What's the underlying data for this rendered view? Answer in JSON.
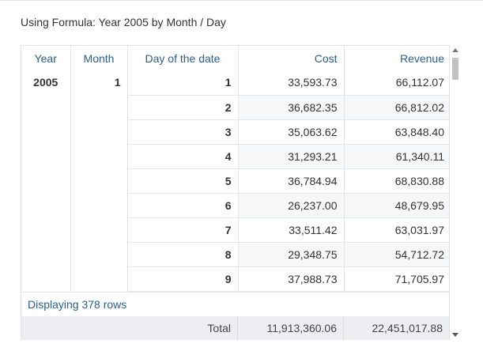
{
  "title": "Using Formula: Year 2005 by Month / Day",
  "columns": [
    "Year",
    "Month",
    "Day of the date",
    "Cost",
    "Revenue"
  ],
  "group": {
    "year": "2005",
    "month": "1"
  },
  "rows": [
    {
      "day": "1",
      "cost": "33,593.73",
      "revenue": "66,112.07"
    },
    {
      "day": "2",
      "cost": "36,682.35",
      "revenue": "66,812.02"
    },
    {
      "day": "3",
      "cost": "35,063.62",
      "revenue": "63,848.40"
    },
    {
      "day": "4",
      "cost": "31,293.21",
      "revenue": "61,340.11"
    },
    {
      "day": "5",
      "cost": "36,784.94",
      "revenue": "68,830.88"
    },
    {
      "day": "6",
      "cost": "26,237.00",
      "revenue": "48,679.95"
    },
    {
      "day": "7",
      "cost": "33,511.42",
      "revenue": "63,031.97"
    },
    {
      "day": "8",
      "cost": "29,348.75",
      "revenue": "54,712.72"
    },
    {
      "day": "9",
      "cost": "37,988.73",
      "revenue": "71,705.97"
    }
  ],
  "footer": {
    "status": "Displaying 378 rows"
  },
  "totals": {
    "label": "Total",
    "cost": "11,913,360.06",
    "revenue": "22,451,017.88"
  },
  "icons": {
    "scroll_up": "caret-up-icon",
    "scroll_down": "caret-down-icon"
  }
}
